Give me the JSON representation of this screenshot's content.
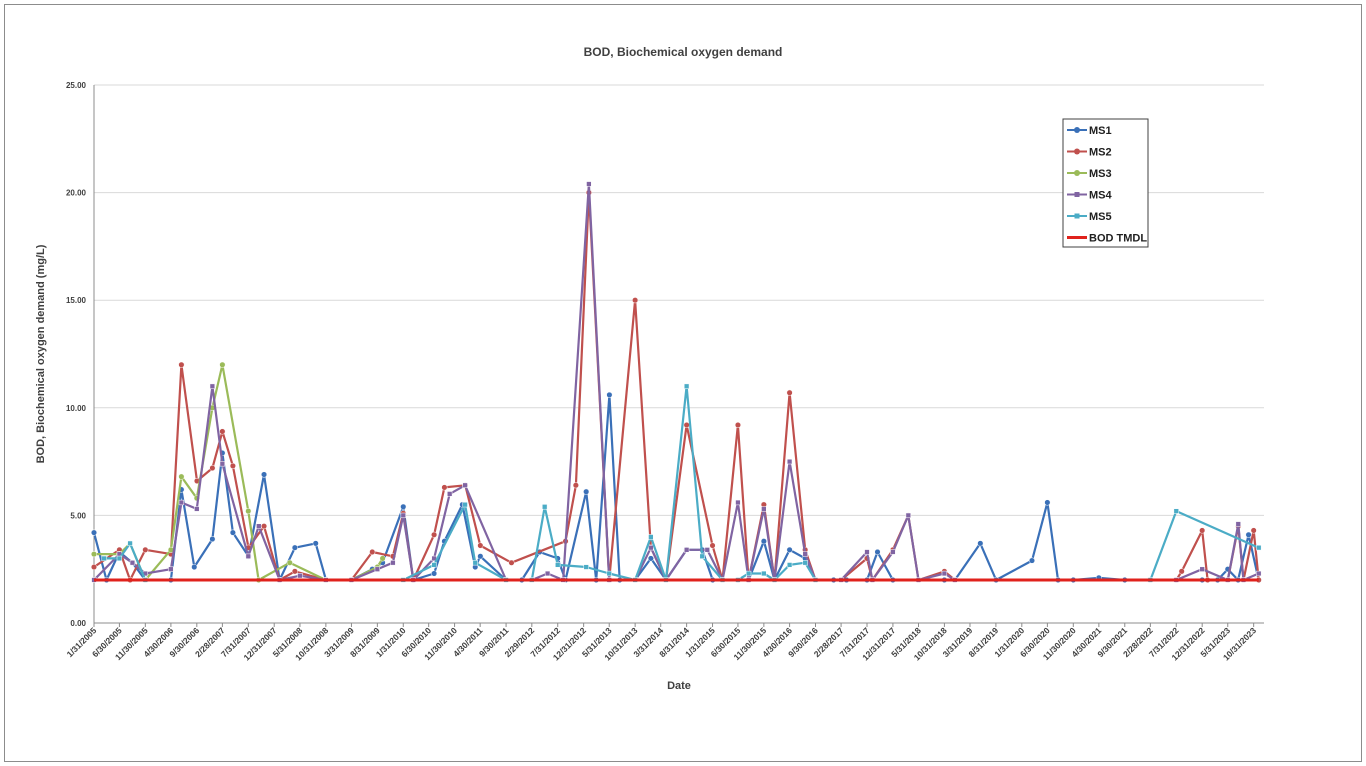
{
  "chart_data": {
    "type": "line",
    "title": "BOD, Biochemical oxygen demand",
    "xlabel": "Date",
    "ylabel": "BOD, Biochemical oxygen demand (mg/L)",
    "ylim": [
      0,
      25
    ],
    "yticks": [
      "0.00",
      "5.00",
      "10.00",
      "15.00",
      "20.00",
      "25.00"
    ],
    "xlim": [
      "2005-01-31",
      "2023-12-31"
    ],
    "xticks": [
      "1/31/2005",
      "6/30/2005",
      "11/30/2005",
      "4/30/2006",
      "9/30/2006",
      "2/28/2007",
      "7/31/2007",
      "12/31/2007",
      "5/31/2008",
      "10/31/2008",
      "3/31/2009",
      "8/31/2009",
      "1/31/2010",
      "6/30/2010",
      "11/30/2010",
      "4/30/2011",
      "9/30/2011",
      "2/29/2012",
      "7/31/2012",
      "12/31/2012",
      "5/31/2013",
      "10/31/2013",
      "3/31/2014",
      "8/31/2014",
      "1/31/2015",
      "6/30/2015",
      "11/30/2015",
      "4/30/2016",
      "9/30/2016",
      "2/28/2017",
      "7/31/2017",
      "12/31/2017",
      "5/31/2018",
      "10/31/2018",
      "3/31/2019",
      "8/31/2019",
      "1/31/2020",
      "6/30/2020",
      "11/30/2020",
      "4/30/2021",
      "9/30/2021",
      "2/28/2022",
      "7/31/2022",
      "12/31/2022",
      "5/31/2023",
      "10/31/2023"
    ],
    "grid": true,
    "legend_position": "top-right",
    "series": [
      {
        "name": "MS1",
        "color": "#3a70b8",
        "marker": "circle",
        "points": [
          [
            "2005-01-31",
            4.2
          ],
          [
            "2005-04-15",
            2.0
          ],
          [
            "2005-06-30",
            3.3
          ],
          [
            "2005-09-15",
            2.8
          ],
          [
            "2005-11-30",
            2.0
          ],
          [
            "2006-04-30",
            2.0
          ],
          [
            "2006-07-01",
            6.2
          ],
          [
            "2006-09-15",
            2.6
          ],
          [
            "2006-12-31",
            3.9
          ],
          [
            "2007-02-28",
            7.9
          ],
          [
            "2007-05-01",
            4.2
          ],
          [
            "2007-08-01",
            3.1
          ],
          [
            "2007-11-01",
            6.9
          ],
          [
            "2008-02-01",
            2.0
          ],
          [
            "2008-05-01",
            3.5
          ],
          [
            "2008-09-01",
            3.7
          ],
          [
            "2008-11-01",
            2.0
          ],
          [
            "2009-03-31",
            2.0
          ],
          [
            "2009-08-01",
            2.5
          ],
          [
            "2009-10-01",
            2.8
          ],
          [
            "2010-01-31",
            5.4
          ],
          [
            "2010-03-31",
            2.0
          ],
          [
            "2010-08-01",
            2.3
          ],
          [
            "2010-10-01",
            3.8
          ],
          [
            "2011-01-15",
            5.5
          ],
          [
            "2011-04-01",
            2.6
          ],
          [
            "2011-05-01",
            3.1
          ],
          [
            "2011-09-30",
            2.0
          ],
          [
            "2012-01-01",
            2.0
          ],
          [
            "2012-04-15",
            3.3
          ],
          [
            "2012-07-31",
            3.0
          ],
          [
            "2012-09-15",
            2.0
          ],
          [
            "2013-01-15",
            6.1
          ],
          [
            "2013-03-15",
            2.0
          ],
          [
            "2013-06-01",
            10.6
          ],
          [
            "2013-08-01",
            2.0
          ],
          [
            "2013-10-31",
            2.0
          ],
          [
            "2014-02-01",
            3.0
          ],
          [
            "2014-05-01",
            2.0
          ],
          [
            "2014-08-31",
            3.4
          ],
          [
            "2014-12-01",
            3.4
          ],
          [
            "2015-02-01",
            2.0
          ],
          [
            "2015-06-30",
            2.0
          ],
          [
            "2015-09-01",
            2.0
          ],
          [
            "2015-11-30",
            3.8
          ],
          [
            "2016-02-01",
            2.0
          ],
          [
            "2016-04-30",
            3.4
          ],
          [
            "2016-07-31",
            3.0
          ],
          [
            "2016-09-30",
            2.0
          ],
          [
            "2017-01-15",
            2.0
          ],
          [
            "2017-04-01",
            2.0
          ],
          [
            "2017-07-31",
            2.0
          ],
          [
            "2017-10-01",
            3.3
          ],
          [
            "2017-12-31",
            2.0
          ],
          [
            "2018-05-31",
            2.0
          ],
          [
            "2018-10-31",
            2.0
          ],
          [
            "2019-01-01",
            2.0
          ],
          [
            "2019-05-31",
            3.7
          ],
          [
            "2019-09-01",
            2.0
          ],
          [
            "2020-03-31",
            2.9
          ],
          [
            "2020-06-30",
            5.6
          ],
          [
            "2020-09-01",
            2.0
          ],
          [
            "2020-11-30",
            2.0
          ],
          [
            "2021-04-30",
            2.1
          ],
          [
            "2021-09-30",
            2.0
          ],
          [
            "2022-02-28",
            2.0
          ],
          [
            "2022-07-31",
            2.0
          ],
          [
            "2022-12-31",
            2.0
          ],
          [
            "2023-04-01",
            2.0
          ],
          [
            "2023-05-31",
            2.5
          ],
          [
            "2023-07-31",
            2.0
          ],
          [
            "2023-10-01",
            4.1
          ],
          [
            "2023-11-30",
            2.0
          ]
        ]
      },
      {
        "name": "MS2",
        "color": "#c0504d",
        "marker": "circle",
        "points": [
          [
            "2005-01-31",
            2.6
          ],
          [
            "2005-06-30",
            3.4
          ],
          [
            "2005-09-01",
            2.0
          ],
          [
            "2005-11-30",
            3.4
          ],
          [
            "2006-04-30",
            3.2
          ],
          [
            "2006-07-01",
            12.0
          ],
          [
            "2006-10-01",
            6.6
          ],
          [
            "2006-12-31",
            7.2
          ],
          [
            "2007-02-28",
            8.9
          ],
          [
            "2007-05-01",
            7.3
          ],
          [
            "2007-08-01",
            3.5
          ],
          [
            "2007-11-01",
            4.5
          ],
          [
            "2008-02-01",
            2.0
          ],
          [
            "2008-05-01",
            2.4
          ],
          [
            "2008-10-31",
            2.0
          ],
          [
            "2009-03-31",
            2.0
          ],
          [
            "2009-08-01",
            3.3
          ],
          [
            "2009-12-01",
            3.1
          ],
          [
            "2010-01-31",
            5.1
          ],
          [
            "2010-03-31",
            2.0
          ],
          [
            "2010-08-01",
            4.1
          ],
          [
            "2010-10-01",
            6.3
          ],
          [
            "2011-02-01",
            6.4
          ],
          [
            "2011-05-01",
            3.6
          ],
          [
            "2011-11-01",
            2.8
          ],
          [
            "2012-09-15",
            3.8
          ],
          [
            "2012-11-15",
            6.4
          ],
          [
            "2013-01-31",
            20.0
          ],
          [
            "2013-05-31",
            2.0
          ],
          [
            "2013-10-31",
            15.0
          ],
          [
            "2014-02-01",
            3.5
          ],
          [
            "2014-05-01",
            2.0
          ],
          [
            "2014-08-31",
            9.2
          ],
          [
            "2015-01-31",
            3.6
          ],
          [
            "2015-03-31",
            2.0
          ],
          [
            "2015-06-30",
            9.2
          ],
          [
            "2015-09-01",
            2.0
          ],
          [
            "2015-11-30",
            5.5
          ],
          [
            "2016-02-01",
            2.0
          ],
          [
            "2016-04-30",
            10.7
          ],
          [
            "2016-07-31",
            3.4
          ],
          [
            "2016-09-30",
            2.0
          ],
          [
            "2017-02-28",
            2.0
          ],
          [
            "2017-07-31",
            3.0
          ],
          [
            "2017-09-01",
            2.0
          ],
          [
            "2017-12-31",
            3.4
          ],
          [
            "2018-04-01",
            5.0
          ],
          [
            "2018-05-31",
            2.0
          ],
          [
            "2018-10-31",
            2.4
          ],
          [
            "2019-01-01",
            2.0
          ],
          [
            "2022-02-28",
            2.0
          ],
          [
            "2022-07-31",
            2.0
          ],
          [
            "2022-09-01",
            2.4
          ],
          [
            "2022-12-31",
            4.3
          ],
          [
            "2023-02-01",
            2.0
          ],
          [
            "2023-05-31",
            2.0
          ],
          [
            "2023-08-01",
            4.5
          ],
          [
            "2023-09-01",
            2.0
          ],
          [
            "2023-10-31",
            4.3
          ],
          [
            "2023-11-30",
            2.0
          ]
        ]
      },
      {
        "name": "MS3",
        "color": "#9bbb59",
        "marker": "circle",
        "points": [
          [
            "2005-01-31",
            3.2
          ],
          [
            "2005-06-30",
            3.2
          ],
          [
            "2005-09-01",
            3.7
          ],
          [
            "2005-11-30",
            2.0
          ],
          [
            "2006-04-30",
            3.4
          ],
          [
            "2006-07-01",
            6.8
          ],
          [
            "2006-09-30",
            5.8
          ],
          [
            "2006-12-31",
            10.0
          ],
          [
            "2007-02-28",
            12.0
          ],
          [
            "2007-07-31",
            5.2
          ],
          [
            "2007-09-30",
            2.0
          ],
          [
            "2008-04-01",
            2.8
          ],
          [
            "2008-10-31",
            2.0
          ],
          [
            "2009-03-31",
            2.0
          ],
          [
            "2009-08-31",
            2.6
          ],
          [
            "2009-10-01",
            3.0
          ]
        ]
      },
      {
        "name": "MS4",
        "color": "#8064a2",
        "marker": "square",
        "points": [
          [
            "2005-01-31",
            2.0
          ],
          [
            "2005-06-30",
            3.2
          ],
          [
            "2005-09-15",
            2.8
          ],
          [
            "2005-11-30",
            2.3
          ],
          [
            "2006-04-30",
            2.5
          ],
          [
            "2006-07-01",
            5.6
          ],
          [
            "2006-09-30",
            5.3
          ],
          [
            "2006-12-31",
            11.0
          ],
          [
            "2007-02-28",
            7.4
          ],
          [
            "2007-07-31",
            3.1
          ],
          [
            "2007-10-01",
            4.5
          ],
          [
            "2008-02-01",
            2.0
          ],
          [
            "2008-05-31",
            2.2
          ],
          [
            "2008-10-31",
            2.0
          ],
          [
            "2009-03-31",
            2.0
          ],
          [
            "2009-08-31",
            2.5
          ],
          [
            "2009-12-01",
            2.8
          ],
          [
            "2010-01-31",
            5.0
          ],
          [
            "2010-03-31",
            2.0
          ],
          [
            "2010-08-01",
            3.0
          ],
          [
            "2010-11-01",
            6.0
          ],
          [
            "2011-01-31",
            6.4
          ],
          [
            "2011-09-30",
            2.0
          ],
          [
            "2012-02-29",
            2.0
          ],
          [
            "2012-06-01",
            2.3
          ],
          [
            "2012-09-01",
            2.0
          ],
          [
            "2013-01-31",
            20.4
          ],
          [
            "2013-05-31",
            2.0
          ],
          [
            "2013-10-31",
            2.0
          ],
          [
            "2014-02-01",
            3.5
          ],
          [
            "2014-05-01",
            2.0
          ],
          [
            "2014-08-31",
            3.4
          ],
          [
            "2014-12-31",
            3.4
          ],
          [
            "2015-03-31",
            2.0
          ],
          [
            "2015-06-30",
            5.6
          ],
          [
            "2015-09-01",
            2.0
          ],
          [
            "2015-11-30",
            5.3
          ],
          [
            "2016-02-01",
            2.0
          ],
          [
            "2016-04-30",
            7.5
          ],
          [
            "2016-07-31",
            3.2
          ],
          [
            "2016-09-30",
            2.0
          ],
          [
            "2017-02-28",
            2.0
          ],
          [
            "2017-07-31",
            3.3
          ],
          [
            "2017-09-01",
            2.0
          ],
          [
            "2017-12-31",
            3.3
          ],
          [
            "2018-04-01",
            5.0
          ],
          [
            "2018-05-31",
            2.0
          ],
          [
            "2018-10-31",
            2.3
          ],
          [
            "2019-01-01",
            2.0
          ],
          [
            "2022-02-28",
            2.0
          ],
          [
            "2022-07-31",
            2.0
          ],
          [
            "2022-12-31",
            2.5
          ],
          [
            "2023-05-31",
            2.0
          ],
          [
            "2023-08-01",
            4.6
          ],
          [
            "2023-09-01",
            2.0
          ],
          [
            "2023-11-30",
            2.3
          ]
        ]
      },
      {
        "name": "MS5",
        "color": "#4bacc6",
        "marker": "square",
        "points": [
          [
            "2005-04-01",
            3.0
          ],
          [
            "2005-06-30",
            3.0
          ],
          [
            "2005-09-01",
            3.7
          ],
          [
            "2005-11-30",
            2.0
          ],
          [
            "2010-01-31",
            2.0
          ],
          [
            "2010-08-01",
            2.7
          ],
          [
            "2011-01-31",
            5.5
          ],
          [
            "2011-04-01",
            2.8
          ],
          [
            "2011-09-30",
            2.0
          ],
          [
            "2012-02-29",
            2.0
          ],
          [
            "2012-05-15",
            5.4
          ],
          [
            "2012-07-31",
            2.7
          ],
          [
            "2013-01-15",
            2.6
          ],
          [
            "2013-05-31",
            2.3
          ],
          [
            "2013-10-31",
            2.0
          ],
          [
            "2014-02-01",
            4.0
          ],
          [
            "2014-05-01",
            2.0
          ],
          [
            "2014-08-31",
            11.0
          ],
          [
            "2014-12-01",
            3.1
          ],
          [
            "2015-03-31",
            2.0
          ],
          [
            "2015-06-30",
            2.0
          ],
          [
            "2015-09-01",
            2.3
          ],
          [
            "2015-11-30",
            2.3
          ],
          [
            "2016-02-01",
            2.0
          ],
          [
            "2016-04-30",
            2.7
          ],
          [
            "2016-07-31",
            2.8
          ],
          [
            "2016-09-30",
            2.0
          ],
          [
            "2022-02-28",
            2.0
          ],
          [
            "2022-07-31",
            5.2
          ],
          [
            "2023-11-30",
            3.5
          ]
        ]
      },
      {
        "name": "BOD TMDL",
        "color": "#e0221c",
        "marker": "none",
        "points": [
          [
            "2005-01-31",
            2.0
          ],
          [
            "2023-11-30",
            2.0
          ]
        ]
      }
    ]
  }
}
